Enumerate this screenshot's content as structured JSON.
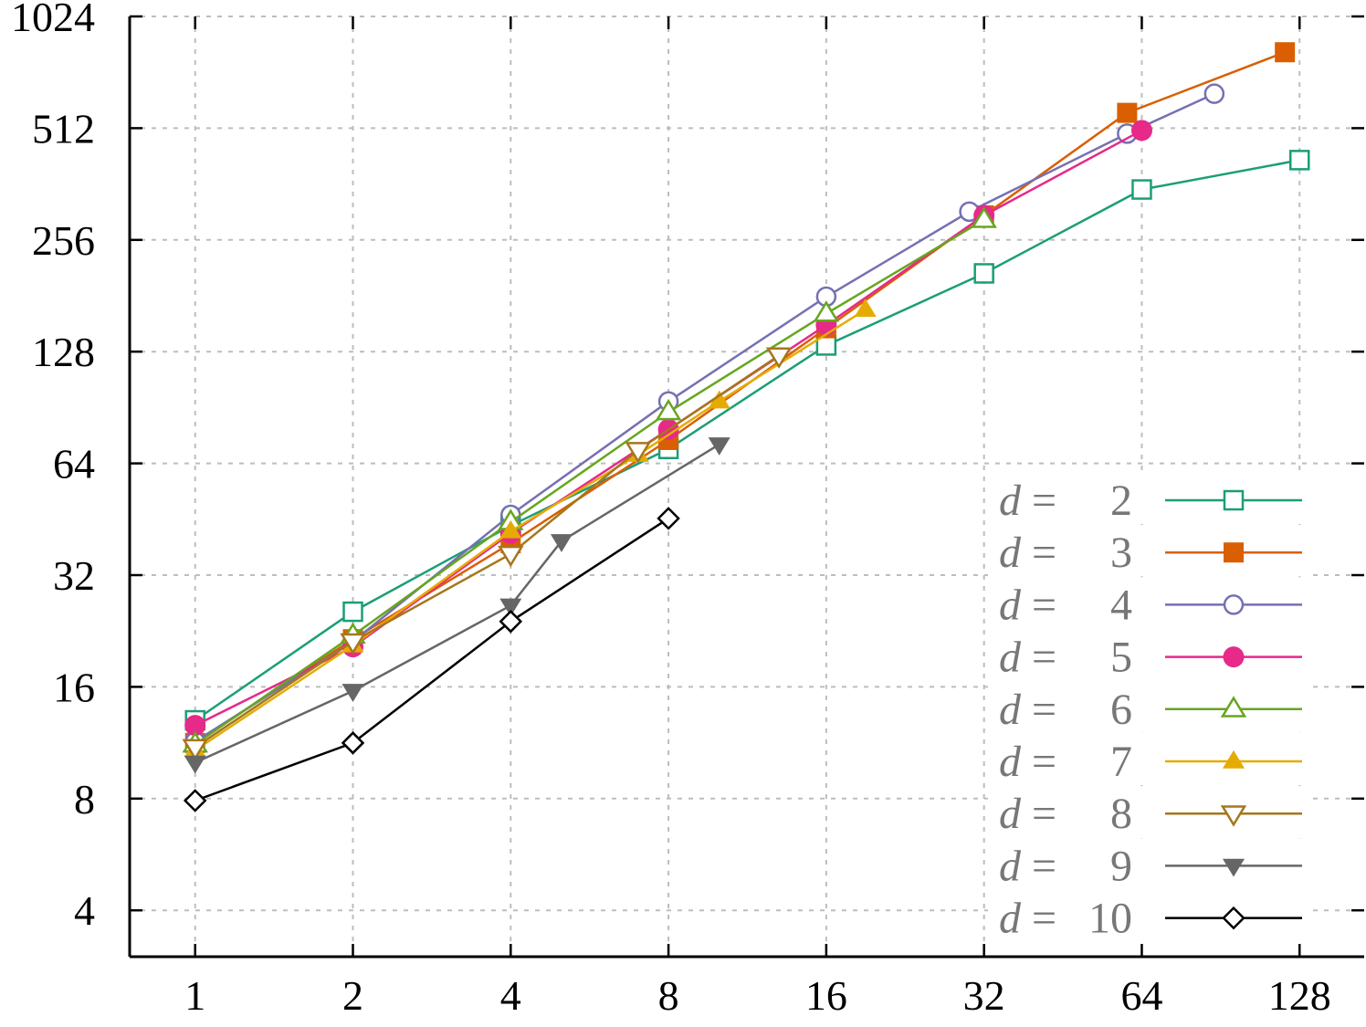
{
  "chart_data": {
    "type": "line",
    "title": "",
    "xlabel": "",
    "ylabel": "",
    "x_scale": "log2",
    "y_scale": "log2",
    "xlim": [
      0.75,
      170
    ],
    "ylim": [
      3.0,
      1024
    ],
    "x_ticks": [
      1,
      2,
      4,
      8,
      16,
      32,
      64,
      128
    ],
    "y_ticks": [
      4,
      8,
      16,
      32,
      64,
      128,
      256,
      512,
      1024
    ],
    "grid": true,
    "legend_position": "bottom-right",
    "legend_prefix": "d =",
    "series": [
      {
        "name": "2",
        "color": "#1b9e77",
        "marker": "square-open",
        "points": [
          [
            1,
            13.0
          ],
          [
            2,
            25.5
          ],
          [
            4,
            43.5
          ],
          [
            8,
            70.0
          ],
          [
            16,
            133.0
          ],
          [
            32,
            208.0
          ],
          [
            64,
            350.0
          ],
          [
            128,
            420.0
          ]
        ]
      },
      {
        "name": "3",
        "color": "#d95f02",
        "marker": "square-filled",
        "points": [
          [
            1,
            11.3
          ],
          [
            2,
            21.5
          ],
          [
            4,
            39.0
          ],
          [
            8,
            74.0
          ],
          [
            16,
            148.0
          ],
          [
            32,
            298.0
          ],
          [
            60,
            563.0
          ],
          [
            120,
            820.0
          ]
        ]
      },
      {
        "name": "4",
        "color": "#7570b3",
        "marker": "circle-open",
        "points": [
          [
            1,
            11.4
          ],
          [
            2,
            21.2
          ],
          [
            4,
            46.5
          ],
          [
            8,
            94.0
          ],
          [
            16,
            180.0
          ],
          [
            30,
            305.0
          ],
          [
            60,
            495.0
          ],
          [
            88,
            634.0
          ]
        ]
      },
      {
        "name": "5",
        "color": "#e7298a",
        "marker": "circle-filled",
        "points": [
          [
            1,
            12.6
          ],
          [
            2,
            20.5
          ],
          [
            4,
            41.5
          ],
          [
            8,
            79.0
          ],
          [
            16,
            151.0
          ],
          [
            32,
            298.0
          ],
          [
            64,
            505.0
          ]
        ]
      },
      {
        "name": "6",
        "color": "#66a61e",
        "marker": "triangle-open",
        "points": [
          [
            1,
            11.2
          ],
          [
            2,
            22.0
          ],
          [
            4,
            44.5
          ],
          [
            8,
            88.0
          ],
          [
            16,
            162.0
          ],
          [
            32,
            290.0
          ]
        ]
      },
      {
        "name": "7",
        "color": "#e6ab02",
        "marker": "triangle-filled",
        "points": [
          [
            1,
            10.8
          ],
          [
            2,
            20.7
          ],
          [
            4,
            42.0
          ],
          [
            7,
            67.5
          ],
          [
            10,
            94.0
          ],
          [
            19,
            166.0
          ]
        ]
      },
      {
        "name": "8",
        "color": "#a6761d",
        "marker": "triangle-down-open",
        "points": [
          [
            1,
            11.0
          ],
          [
            2,
            21.2
          ],
          [
            4,
            36.5
          ],
          [
            7,
            69.5
          ],
          [
            13,
            125.0
          ]
        ]
      },
      {
        "name": "9",
        "color": "#666666",
        "marker": "triangle-down-filled",
        "points": [
          [
            1,
            10.0
          ],
          [
            2,
            15.6
          ],
          [
            4,
            26.5
          ],
          [
            5,
            39.5
          ],
          [
            10,
            72.0
          ]
        ]
      },
      {
        "name": "10",
        "color": "#000000",
        "marker": "diamond-open",
        "points": [
          [
            1,
            7.9
          ],
          [
            2,
            11.3
          ],
          [
            4,
            24.0
          ],
          [
            8,
            45.5
          ]
        ]
      }
    ]
  }
}
